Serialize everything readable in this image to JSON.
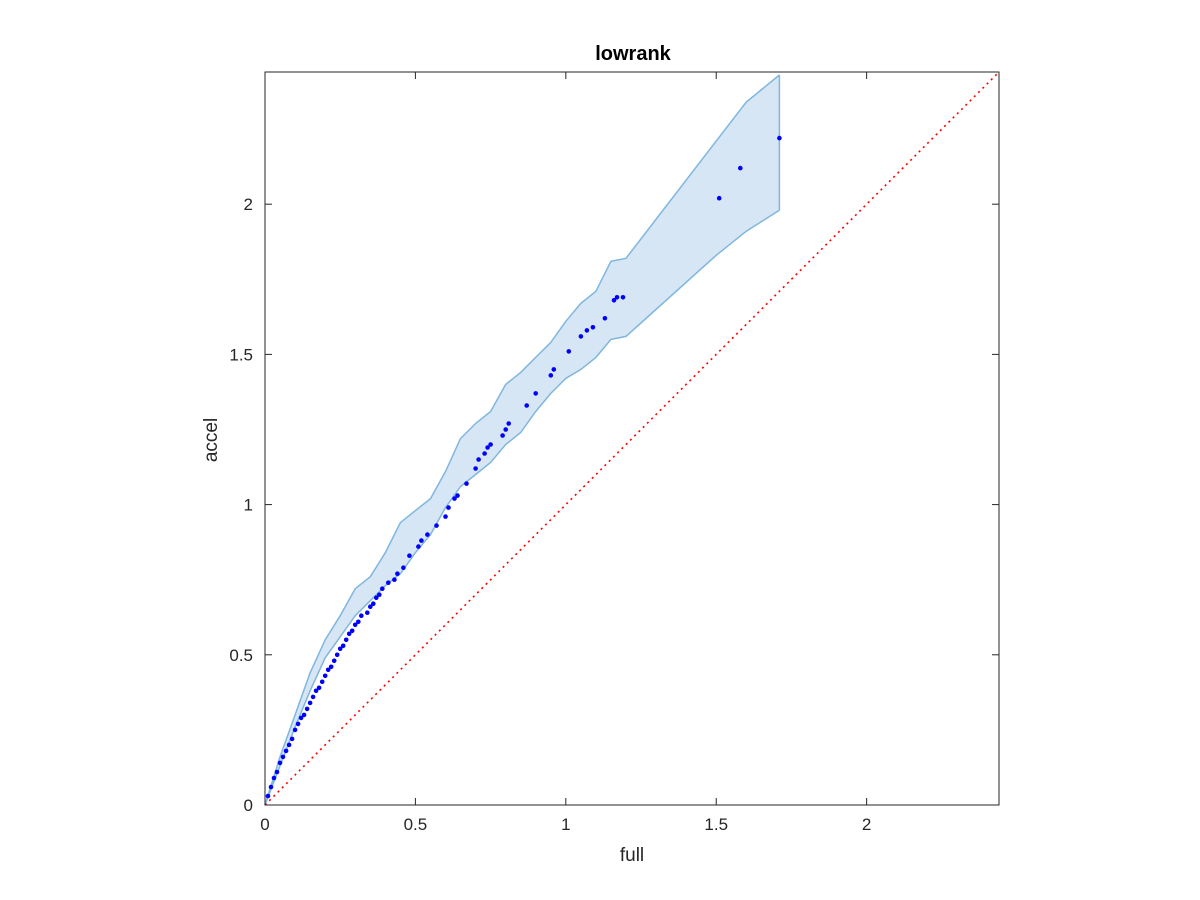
{
  "chart_data": {
    "type": "scatter",
    "title": "lowrank",
    "xlabel": "full",
    "ylabel": "accel",
    "xlim": [
      0,
      2.44
    ],
    "ylim": [
      0,
      2.44
    ],
    "xticks": [
      0,
      0.5,
      1,
      1.5,
      2
    ],
    "yticks": [
      0,
      0.5,
      1,
      1.5,
      2
    ],
    "xtick_labels": [
      "0",
      "0.5",
      "1",
      "1.5",
      "2"
    ],
    "ytick_labels": [
      "0",
      "0.5",
      "1",
      "1.5",
      "2"
    ],
    "grid": false,
    "colors": {
      "points": "#0000ff",
      "band_fill": "#d6e6f4",
      "band_edge": "#7fb6df",
      "reference_line": "#ff0000",
      "axes": "#262626"
    },
    "confidence_band": {
      "x": [
        0,
        0.05,
        0.1,
        0.15,
        0.2,
        0.25,
        0.3,
        0.35,
        0.4,
        0.45,
        0.5,
        0.55,
        0.6,
        0.65,
        0.7,
        0.75,
        0.8,
        0.85,
        0.9,
        0.95,
        1.0,
        1.05,
        1.1,
        1.15,
        1.2,
        1.5,
        1.6,
        1.71
      ],
      "upper": [
        0,
        0.16,
        0.3,
        0.44,
        0.55,
        0.63,
        0.72,
        0.76,
        0.84,
        0.94,
        0.98,
        1.02,
        1.11,
        1.22,
        1.27,
        1.31,
        1.4,
        1.44,
        1.49,
        1.54,
        1.61,
        1.67,
        1.71,
        1.81,
        1.82,
        2.21,
        2.34,
        2.43
      ],
      "lower": [
        0,
        0.13,
        0.26,
        0.38,
        0.49,
        0.56,
        0.63,
        0.68,
        0.73,
        0.77,
        0.84,
        0.9,
        0.99,
        1.06,
        1.1,
        1.14,
        1.2,
        1.24,
        1.31,
        1.37,
        1.42,
        1.45,
        1.49,
        1.55,
        1.56,
        1.83,
        1.91,
        1.98
      ]
    },
    "series": [
      {
        "x": [
          0.01,
          0.02,
          0.03,
          0.04,
          0.05,
          0.06,
          0.07,
          0.08,
          0.09,
          0.1,
          0.11,
          0.12,
          0.13,
          0.14,
          0.15,
          0.16,
          0.17,
          0.18,
          0.19,
          0.2,
          0.21,
          0.22,
          0.23,
          0.24,
          0.25,
          0.26,
          0.27,
          0.28,
          0.29,
          0.3,
          0.31,
          0.32,
          0.34,
          0.35,
          0.36,
          0.37,
          0.38,
          0.39,
          0.41,
          0.43,
          0.44,
          0.46,
          0.48,
          0.51,
          0.52,
          0.54,
          0.57,
          0.6,
          0.61,
          0.63,
          0.64,
          0.67,
          0.7,
          0.71,
          0.73,
          0.74,
          0.75,
          0.79,
          0.8,
          0.81,
          0.87,
          0.9,
          0.95,
          0.96,
          1.01,
          1.05,
          1.07,
          1.09,
          1.13,
          1.16,
          1.17,
          1.19,
          1.51,
          1.58,
          1.71
        ],
        "y": [
          0.03,
          0.06,
          0.09,
          0.11,
          0.14,
          0.16,
          0.18,
          0.2,
          0.22,
          0.25,
          0.27,
          0.29,
          0.3,
          0.32,
          0.34,
          0.36,
          0.38,
          0.39,
          0.41,
          0.43,
          0.45,
          0.46,
          0.48,
          0.5,
          0.52,
          0.53,
          0.55,
          0.57,
          0.58,
          0.6,
          0.61,
          0.63,
          0.64,
          0.66,
          0.67,
          0.69,
          0.7,
          0.72,
          0.74,
          0.75,
          0.77,
          0.79,
          0.83,
          0.86,
          0.88,
          0.9,
          0.93,
          0.96,
          0.99,
          1.02,
          1.03,
          1.07,
          1.12,
          1.15,
          1.17,
          1.19,
          1.2,
          1.23,
          1.25,
          1.27,
          1.33,
          1.37,
          1.43,
          1.45,
          1.51,
          1.56,
          1.58,
          1.59,
          1.62,
          1.68,
          1.69,
          1.69,
          2.02,
          2.12,
          2.22
        ]
      }
    ],
    "reference_line": {
      "x": [
        0,
        2.44
      ],
      "y": [
        0,
        2.44
      ],
      "style": "dotted"
    }
  }
}
